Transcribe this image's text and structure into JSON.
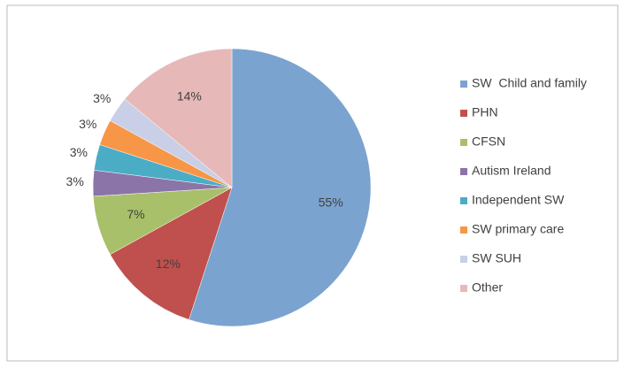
{
  "chart_data": {
    "type": "pie",
    "categories": [
      "SW  Child and family",
      "PHN",
      "CFSN",
      "Autism Ireland",
      "Independent SW",
      "SW primary care",
      "SW SUH",
      "Other"
    ],
    "values": [
      55,
      12,
      7,
      3,
      3,
      3,
      3,
      14
    ],
    "value_labels": [
      "55%",
      "12%",
      "7%",
      "3%",
      "3%",
      "3%",
      "3%",
      "14%"
    ],
    "colors": [
      "#7ba3cf",
      "#c0504d",
      "#a9c06a",
      "#8b74a8",
      "#4bacc6",
      "#f79646",
      "#c9cfe6",
      "#e6b9b8"
    ],
    "legend": "right"
  }
}
